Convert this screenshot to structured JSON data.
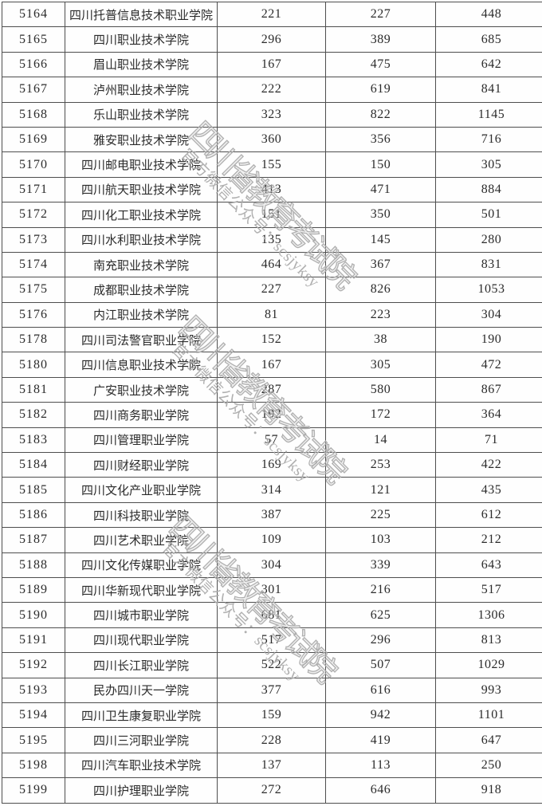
{
  "watermark": {
    "title": "四川省教育考试院",
    "subtitle": "官方微信公众号：scsjyksy",
    "color": "#acacac"
  },
  "table": {
    "border_color": "#4e4e4e",
    "rows": [
      {
        "code": "5164",
        "name": "四川托普信息技术职业学院",
        "v1": "221",
        "v2": "227",
        "v3": "448"
      },
      {
        "code": "5165",
        "name": "四川职业技术学院",
        "v1": "296",
        "v2": "389",
        "v3": "685"
      },
      {
        "code": "5166",
        "name": "眉山职业技术学院",
        "v1": "167",
        "v2": "475",
        "v3": "642"
      },
      {
        "code": "5167",
        "name": "泸州职业技术学院",
        "v1": "222",
        "v2": "619",
        "v3": "841"
      },
      {
        "code": "5168",
        "name": "乐山职业技术学院",
        "v1": "323",
        "v2": "822",
        "v3": "1145"
      },
      {
        "code": "5169",
        "name": "雅安职业技术学院",
        "v1": "360",
        "v2": "356",
        "v3": "716"
      },
      {
        "code": "5170",
        "name": "四川邮电职业技术学院",
        "v1": "155",
        "v2": "150",
        "v3": "305"
      },
      {
        "code": "5171",
        "name": "四川航天职业技术学院",
        "v1": "413",
        "v2": "471",
        "v3": "884"
      },
      {
        "code": "5172",
        "name": "四川化工职业技术学院",
        "v1": "151",
        "v2": "350",
        "v3": "501"
      },
      {
        "code": "5173",
        "name": "四川水利职业技术学院",
        "v1": "135",
        "v2": "145",
        "v3": "280"
      },
      {
        "code": "5174",
        "name": "南充职业技术学院",
        "v1": "464",
        "v2": "367",
        "v3": "831"
      },
      {
        "code": "5175",
        "name": "成都职业技术学院",
        "v1": "227",
        "v2": "826",
        "v3": "1053"
      },
      {
        "code": "5176",
        "name": "内江职业技术学院",
        "v1": "81",
        "v2": "223",
        "v3": "304"
      },
      {
        "code": "5178",
        "name": "四川司法警官职业学院",
        "v1": "152",
        "v2": "38",
        "v3": "190"
      },
      {
        "code": "5180",
        "name": "四川信息职业技术学院",
        "v1": "167",
        "v2": "305",
        "v3": "472"
      },
      {
        "code": "5181",
        "name": "广安职业技术学院",
        "v1": "287",
        "v2": "580",
        "v3": "867"
      },
      {
        "code": "5182",
        "name": "四川商务职业学院",
        "v1": "192",
        "v2": "172",
        "v3": "364"
      },
      {
        "code": "5183",
        "name": "四川管理职业学院",
        "v1": "57",
        "v2": "14",
        "v3": "71"
      },
      {
        "code": "5184",
        "name": "四川财经职业学院",
        "v1": "169",
        "v2": "253",
        "v3": "422"
      },
      {
        "code": "5185",
        "name": "四川文化产业职业学院",
        "v1": "314",
        "v2": "121",
        "v3": "435"
      },
      {
        "code": "5186",
        "name": "四川科技职业学院",
        "v1": "387",
        "v2": "225",
        "v3": "612"
      },
      {
        "code": "5187",
        "name": "四川艺术职业学院",
        "v1": "109",
        "v2": "103",
        "v3": "212"
      },
      {
        "code": "5188",
        "name": "四川文化传媒职业学院",
        "v1": "304",
        "v2": "339",
        "v3": "643"
      },
      {
        "code": "5189",
        "name": "四川华新现代职业学院",
        "v1": "301",
        "v2": "216",
        "v3": "517"
      },
      {
        "code": "5190",
        "name": "四川城市职业学院",
        "v1": "681",
        "v2": "625",
        "v3": "1306"
      },
      {
        "code": "5191",
        "name": "四川现代职业学院",
        "v1": "517",
        "v2": "296",
        "v3": "813"
      },
      {
        "code": "5192",
        "name": "四川长江职业学院",
        "v1": "522",
        "v2": "507",
        "v3": "1029"
      },
      {
        "code": "5193",
        "name": "民办四川天一学院",
        "v1": "377",
        "v2": "616",
        "v3": "993"
      },
      {
        "code": "5194",
        "name": "四川卫生康复职业学院",
        "v1": "159",
        "v2": "942",
        "v3": "1101"
      },
      {
        "code": "5195",
        "name": "四川三河职业学院",
        "v1": "228",
        "v2": "419",
        "v3": "647"
      },
      {
        "code": "5198",
        "name": "四川汽车职业技术学院",
        "v1": "137",
        "v2": "113",
        "v3": "250"
      },
      {
        "code": "5199",
        "name": "四川护理职业学院",
        "v1": "272",
        "v2": "646",
        "v3": "918"
      }
    ]
  }
}
